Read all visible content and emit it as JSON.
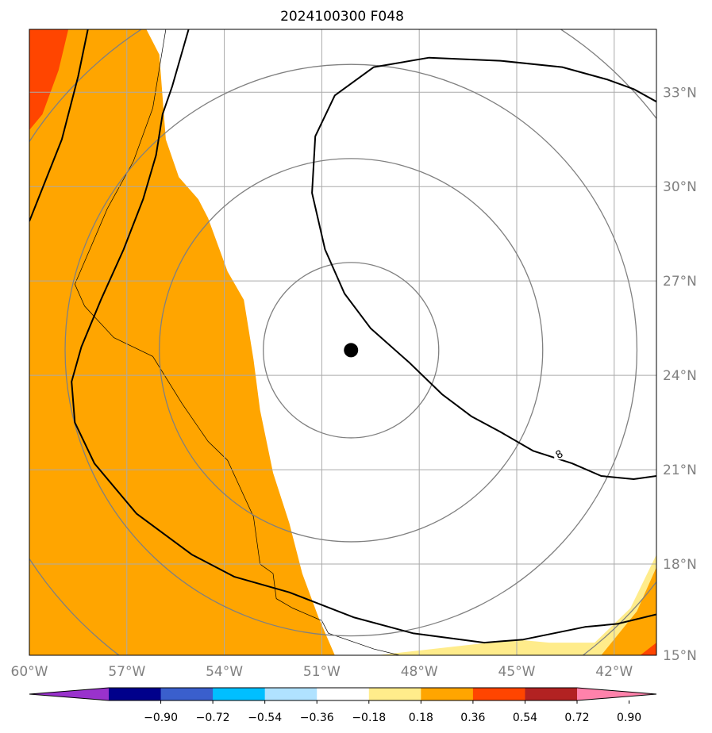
{
  "chart_data": {
    "type": "heatmap",
    "title": "2024100300 F048",
    "map": {
      "lon_range": [
        -60,
        -40.7
      ],
      "lat_range": [
        15.1,
        35
      ]
    },
    "x_ticks": [
      -60,
      -57,
      -54,
      -51,
      -48,
      -45,
      -42
    ],
    "x_tick_labels": [
      "60°W",
      "57°W",
      "54°W",
      "51°W",
      "48°W",
      "45°W",
      "42°W"
    ],
    "y_ticks": [
      15,
      18,
      21,
      24,
      27,
      30,
      33
    ],
    "y_tick_labels": [
      "15°N",
      "18°N",
      "21°N",
      "24°N",
      "27°N",
      "30°N",
      "33°N"
    ],
    "grid": true,
    "storm_center": {
      "lon": -50.1,
      "lat": 24.8
    },
    "range_ring_radii_deg": [
      2.7,
      5.9,
      8.8,
      11.8
    ],
    "colorbar": {
      "levels": [
        -0.9,
        -0.72,
        -0.54,
        -0.36,
        -0.18,
        0.18,
        0.36,
        0.54,
        0.72,
        0.9
      ],
      "tick_labels": [
        "−0.90",
        "−0.72",
        "−0.54",
        "−0.36",
        "−0.18",
        "0.18",
        "0.36",
        "0.54",
        "0.72",
        "0.90"
      ],
      "colors": [
        "#9932cc",
        "#00008b",
        "#3a5fcd",
        "#00bfff",
        "#b0e2ff",
        "#ffffff",
        "#ffec8b",
        "#ffa500",
        "#ff4500",
        "#b22222",
        "#ff82ab"
      ],
      "extend": "both"
    },
    "contour_label": "8",
    "contour_label_position": {
      "lon": -43.7,
      "lat": 21.5
    },
    "filled_regions": [
      {
        "level": "0.36–0.54",
        "color": "#ffa500",
        "lons": [
          -60,
          -60,
          -56.4,
          -56,
          -55.8,
          -55.4,
          -54.8,
          -54.5,
          -53.9,
          -53.4,
          -53.1,
          -52.9,
          -52.5,
          -52.0,
          -51.6,
          -51.1,
          -50.6,
          -60
        ],
        "lats": [
          15.1,
          35,
          35,
          34.2,
          31.5,
          30.3,
          29.6,
          29.0,
          27.3,
          26.4,
          24.5,
          22.9,
          20.9,
          19.3,
          17.7,
          16.3,
          15.1,
          15.1
        ]
      },
      {
        "level": "0.54–0.72",
        "color": "#ff4500",
        "lons": [
          -60,
          -58.8,
          -59.1,
          -59.6,
          -60
        ],
        "lats": [
          35,
          35,
          33.7,
          32.3,
          31.8
        ]
      },
      {
        "level": "0.18–0.36",
        "color": "#ffec8b",
        "lons": [
          -45.0,
          -44.0,
          -42.6,
          -41.5,
          -40.7,
          -40.7,
          -44.8,
          -49.3
        ],
        "lats": [
          15.6,
          15.5,
          15.5,
          16.6,
          18.3,
          15.1,
          15.1,
          15.1
        ]
      },
      {
        "level": "0.36–0.54",
        "color": "#ffa500",
        "lons": [
          -42.4,
          -41.3,
          -40.7,
          -40.7,
          -41.0,
          -42.6
        ],
        "lats": [
          15.1,
          16.5,
          17.9,
          15.1,
          15.1,
          15.1
        ]
      },
      {
        "level": "0.54–0.72",
        "color": "#ff4500",
        "lons": [
          -40.7,
          -41.2,
          -40.7
        ],
        "lats": [
          15.5,
          15.1,
          15.1
        ]
      }
    ],
    "contours": [
      {
        "lons": [
          -60,
          -59.0,
          -58.5,
          -58.2
        ],
        "lats": [
          28.9,
          31.5,
          33.5,
          35
        ]
      },
      {
        "lons": [
          -55.1,
          -55.6,
          -55.9,
          -56.1,
          -56.5,
          -57.1,
          -57.8,
          -58.4,
          -58.7,
          -58.6,
          -58.0,
          -56.7,
          -55.0,
          -53.7,
          -52.0,
          -50.0,
          -48.2,
          -46.0,
          -44.8,
          -42.9,
          -41.9,
          -40.7
        ],
        "lats": [
          35,
          33.2,
          32.3,
          31.0,
          29.6,
          28.0,
          26.4,
          24.9,
          23.8,
          22.5,
          21.2,
          19.6,
          18.3,
          17.6,
          17.1,
          16.3,
          15.8,
          15.5,
          15.6,
          16.0,
          16.1,
          16.4
        ]
      },
      {
        "lons": [
          -40.7,
          -41.4,
          -42.4,
          -43.3,
          -44.5,
          -45.5,
          -46.4,
          -47.3,
          -48.3,
          -49.5,
          -50.3,
          -50.9,
          -51.3,
          -51.2,
          -50.6,
          -49.4,
          -47.7,
          -45.5,
          -43.6,
          -42.2,
          -41.4,
          -40.7
        ],
        "lats": [
          20.8,
          20.7,
          20.8,
          21.2,
          21.6,
          22.2,
          22.7,
          23.4,
          24.4,
          25.5,
          26.6,
          28.0,
          29.8,
          31.6,
          32.9,
          33.8,
          34.1,
          34.0,
          33.8,
          33.4,
          33.1,
          32.7
        ]
      }
    ],
    "thin_outline": [
      {
        "lons": [
          -55.8,
          -56.2,
          -56.8,
          -57.6,
          -58.1,
          -58.6,
          -58.3,
          -57.4,
          -56.2,
          -55.3,
          -54.5,
          -53.9,
          -53.1,
          -52.9,
          -52.5,
          -52.4,
          -51.9,
          -51.0,
          -50.8,
          -49.4,
          -48.6,
          -48.1
        ],
        "lats": [
          35,
          32.5,
          30.8,
          29.3,
          28.1,
          26.9,
          26.2,
          25.2,
          24.6,
          23.1,
          21.9,
          21.3,
          19.5,
          18.0,
          17.7,
          16.9,
          16.6,
          16.2,
          15.8,
          15.3,
          15.1,
          15.1
        ]
      }
    ]
  }
}
